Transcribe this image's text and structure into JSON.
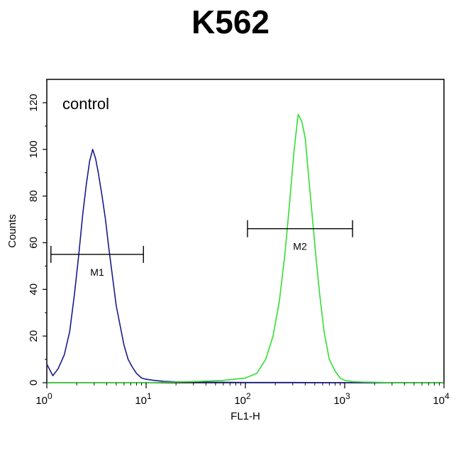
{
  "chart_data": {
    "type": "histogram",
    "title": "K562",
    "xlabel": "FL1-H",
    "ylabel": "Counts",
    "x_scale": "log",
    "xlim": [
      1,
      10000
    ],
    "ylim": [
      0,
      130
    ],
    "y_ticks": [
      "0",
      "20",
      "40",
      "60",
      "80",
      "100",
      "120"
    ],
    "x_ticks": [
      {
        "value": 1,
        "base": "10",
        "exp": "0"
      },
      {
        "value": 10,
        "base": "10",
        "exp": "1"
      },
      {
        "value": 100,
        "base": "10",
        "exp": "2"
      },
      {
        "value": 1000,
        "base": "10",
        "exp": "3"
      },
      {
        "value": 10000,
        "base": "10",
        "exp": "4"
      }
    ],
    "annotation": "control",
    "markers": [
      {
        "label": "M1",
        "x_start": 1.1,
        "x_end": 9.4,
        "y": 55
      },
      {
        "label": "M2",
        "x_start": 105,
        "x_end": 1200,
        "y": 66
      }
    ],
    "series": [
      {
        "color": "#1a1a8c",
        "x": [
          1,
          1.15,
          1.3,
          1.5,
          1.7,
          1.9,
          2.1,
          2.3,
          2.5,
          2.7,
          2.9,
          3.1,
          3.3,
          3.6,
          3.9,
          4.2,
          4.6,
          5.0,
          5.5,
          6.0,
          6.6,
          7.2,
          8.0,
          9.0,
          10,
          12,
          15,
          20,
          30,
          50,
          100,
          300,
          1000,
          10000
        ],
        "y": [
          8,
          3,
          6,
          12,
          22,
          38,
          55,
          72,
          85,
          95,
          100,
          96,
          90,
          80,
          70,
          58,
          45,
          33,
          24,
          16,
          10,
          7,
          4,
          2,
          1.5,
          1,
          0.6,
          0.4,
          0.3,
          0.2,
          0.1,
          0.1,
          0,
          0
        ]
      },
      {
        "color": "#33dd33",
        "x": [
          1,
          10,
          30,
          60,
          100,
          130,
          160,
          190,
          220,
          250,
          280,
          310,
          340,
          370,
          400,
          430,
          470,
          510,
          560,
          620,
          700,
          800,
          900,
          1000,
          1200,
          1500,
          2000,
          3000,
          10000
        ],
        "y": [
          0,
          0,
          0.5,
          1,
          2,
          4,
          10,
          20,
          35,
          55,
          78,
          100,
          115,
          112,
          105,
          90,
          72,
          55,
          38,
          22,
          10,
          5,
          2,
          1,
          0.5,
          0.3,
          0.2,
          0,
          0
        ]
      }
    ]
  }
}
